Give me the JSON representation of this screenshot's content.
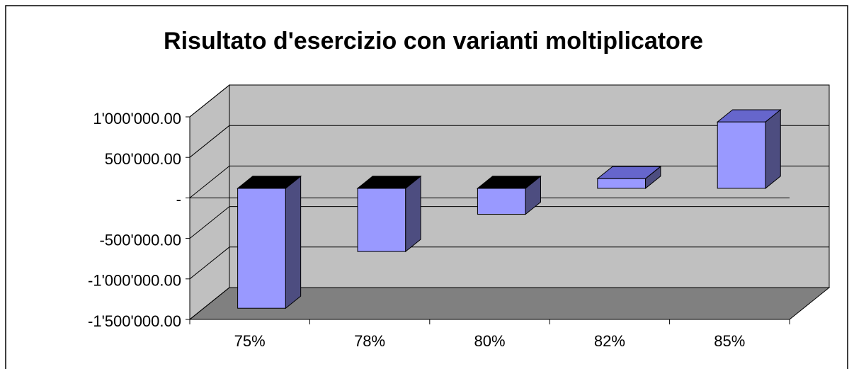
{
  "chart_data": {
    "type": "bar3d",
    "title": "Risultato d'esercizio con varianti moltiplicatore",
    "categories": [
      "75%",
      "78%",
      "80%",
      "82%",
      "85%"
    ],
    "values": [
      -1480000,
      -780000,
      -320000,
      120000,
      820000
    ],
    "color": "#9999ff",
    "ylim": [
      -1500000,
      1000000
    ],
    "yticks": [
      {
        "value": -1500000,
        "label": "-1'500'000.00"
      },
      {
        "value": -1000000,
        "label": "-1'000'000.00"
      },
      {
        "value": -500000,
        "label": "-500'000.00"
      },
      {
        "value": 0,
        "label": "-"
      },
      {
        "value": 500000,
        "label": "500'000.00"
      },
      {
        "value": 1000000,
        "label": "1'000'000.00"
      }
    ],
    "grid": true
  }
}
